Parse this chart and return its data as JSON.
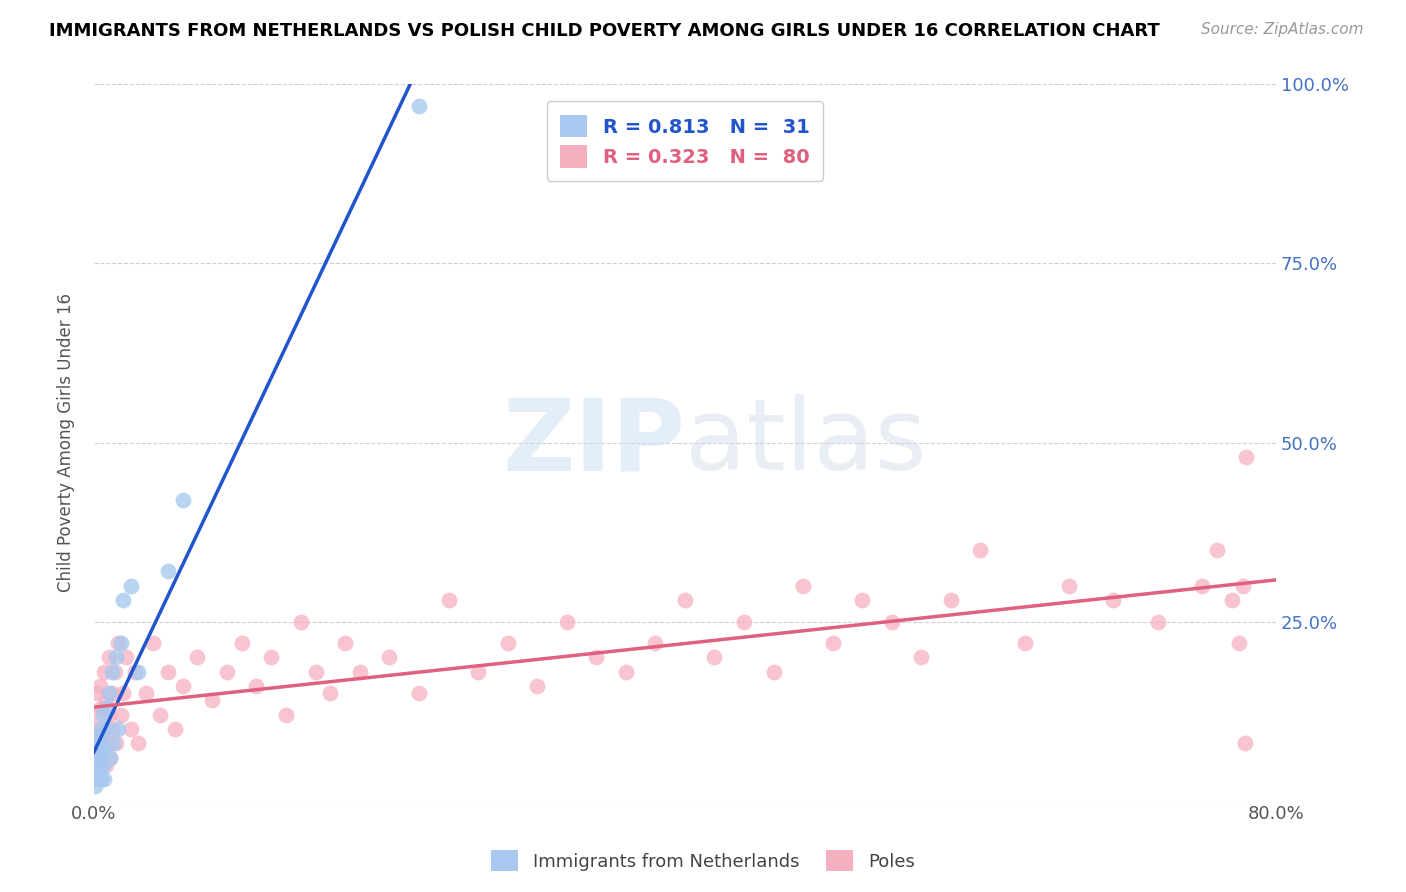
{
  "title": "IMMIGRANTS FROM NETHERLANDS VS POLISH CHILD POVERTY AMONG GIRLS UNDER 16 CORRELATION CHART",
  "source": "Source: ZipAtlas.com",
  "ylabel": "Child Poverty Among Girls Under 16",
  "xmin": 0.0,
  "xmax": 0.8,
  "ymin": 0.0,
  "ymax": 1.0,
  "blue_R": 0.813,
  "blue_N": 31,
  "pink_R": 0.323,
  "pink_N": 80,
  "blue_color": "#A8C8F0",
  "pink_color": "#F5B0C0",
  "blue_line_color": "#2255CC",
  "pink_line_color": "#E06080",
  "legend_label_blue": "Immigrants from Netherlands",
  "legend_label_pink": "Poles",
  "right_axis_color": "#4472C4",
  "blue_scatter_x": [
    0.001,
    0.001,
    0.002,
    0.002,
    0.003,
    0.003,
    0.003,
    0.004,
    0.004,
    0.005,
    0.005,
    0.005,
    0.006,
    0.006,
    0.007,
    0.007,
    0.008,
    0.009,
    0.01,
    0.011,
    0.012,
    0.013,
    0.015,
    0.016,
    0.018,
    0.02,
    0.025,
    0.03,
    0.05,
    0.06,
    0.22
  ],
  "blue_scatter_y": [
    0.02,
    0.04,
    0.03,
    0.06,
    0.05,
    0.07,
    0.09,
    0.04,
    0.08,
    0.03,
    0.06,
    0.1,
    0.05,
    0.12,
    0.03,
    0.07,
    0.1,
    0.13,
    0.15,
    0.06,
    0.18,
    0.08,
    0.2,
    0.1,
    0.22,
    0.28,
    0.3,
    0.18,
    0.32,
    0.42,
    0.97
  ],
  "pink_scatter_x": [
    0.001,
    0.001,
    0.002,
    0.002,
    0.003,
    0.003,
    0.004,
    0.004,
    0.005,
    0.005,
    0.006,
    0.007,
    0.007,
    0.008,
    0.008,
    0.009,
    0.01,
    0.01,
    0.011,
    0.012,
    0.013,
    0.014,
    0.015,
    0.016,
    0.018,
    0.02,
    0.022,
    0.025,
    0.028,
    0.03,
    0.035,
    0.04,
    0.045,
    0.05,
    0.055,
    0.06,
    0.07,
    0.08,
    0.09,
    0.1,
    0.11,
    0.12,
    0.13,
    0.14,
    0.15,
    0.16,
    0.17,
    0.18,
    0.2,
    0.22,
    0.24,
    0.26,
    0.28,
    0.3,
    0.32,
    0.34,
    0.36,
    0.38,
    0.4,
    0.42,
    0.44,
    0.46,
    0.48,
    0.5,
    0.52,
    0.54,
    0.56,
    0.58,
    0.6,
    0.63,
    0.66,
    0.69,
    0.72,
    0.75,
    0.76,
    0.77,
    0.775,
    0.778,
    0.779,
    0.78
  ],
  "pink_scatter_y": [
    0.05,
    0.1,
    0.08,
    0.15,
    0.06,
    0.12,
    0.09,
    0.16,
    0.05,
    0.13,
    0.1,
    0.07,
    0.18,
    0.05,
    0.14,
    0.08,
    0.12,
    0.2,
    0.06,
    0.15,
    0.1,
    0.18,
    0.08,
    0.22,
    0.12,
    0.15,
    0.2,
    0.1,
    0.18,
    0.08,
    0.15,
    0.22,
    0.12,
    0.18,
    0.1,
    0.16,
    0.2,
    0.14,
    0.18,
    0.22,
    0.16,
    0.2,
    0.12,
    0.25,
    0.18,
    0.15,
    0.22,
    0.18,
    0.2,
    0.15,
    0.28,
    0.18,
    0.22,
    0.16,
    0.25,
    0.2,
    0.18,
    0.22,
    0.28,
    0.2,
    0.25,
    0.18,
    0.3,
    0.22,
    0.28,
    0.25,
    0.2,
    0.28,
    0.35,
    0.22,
    0.3,
    0.28,
    0.25,
    0.3,
    0.35,
    0.28,
    0.22,
    0.3,
    0.08,
    0.48
  ]
}
